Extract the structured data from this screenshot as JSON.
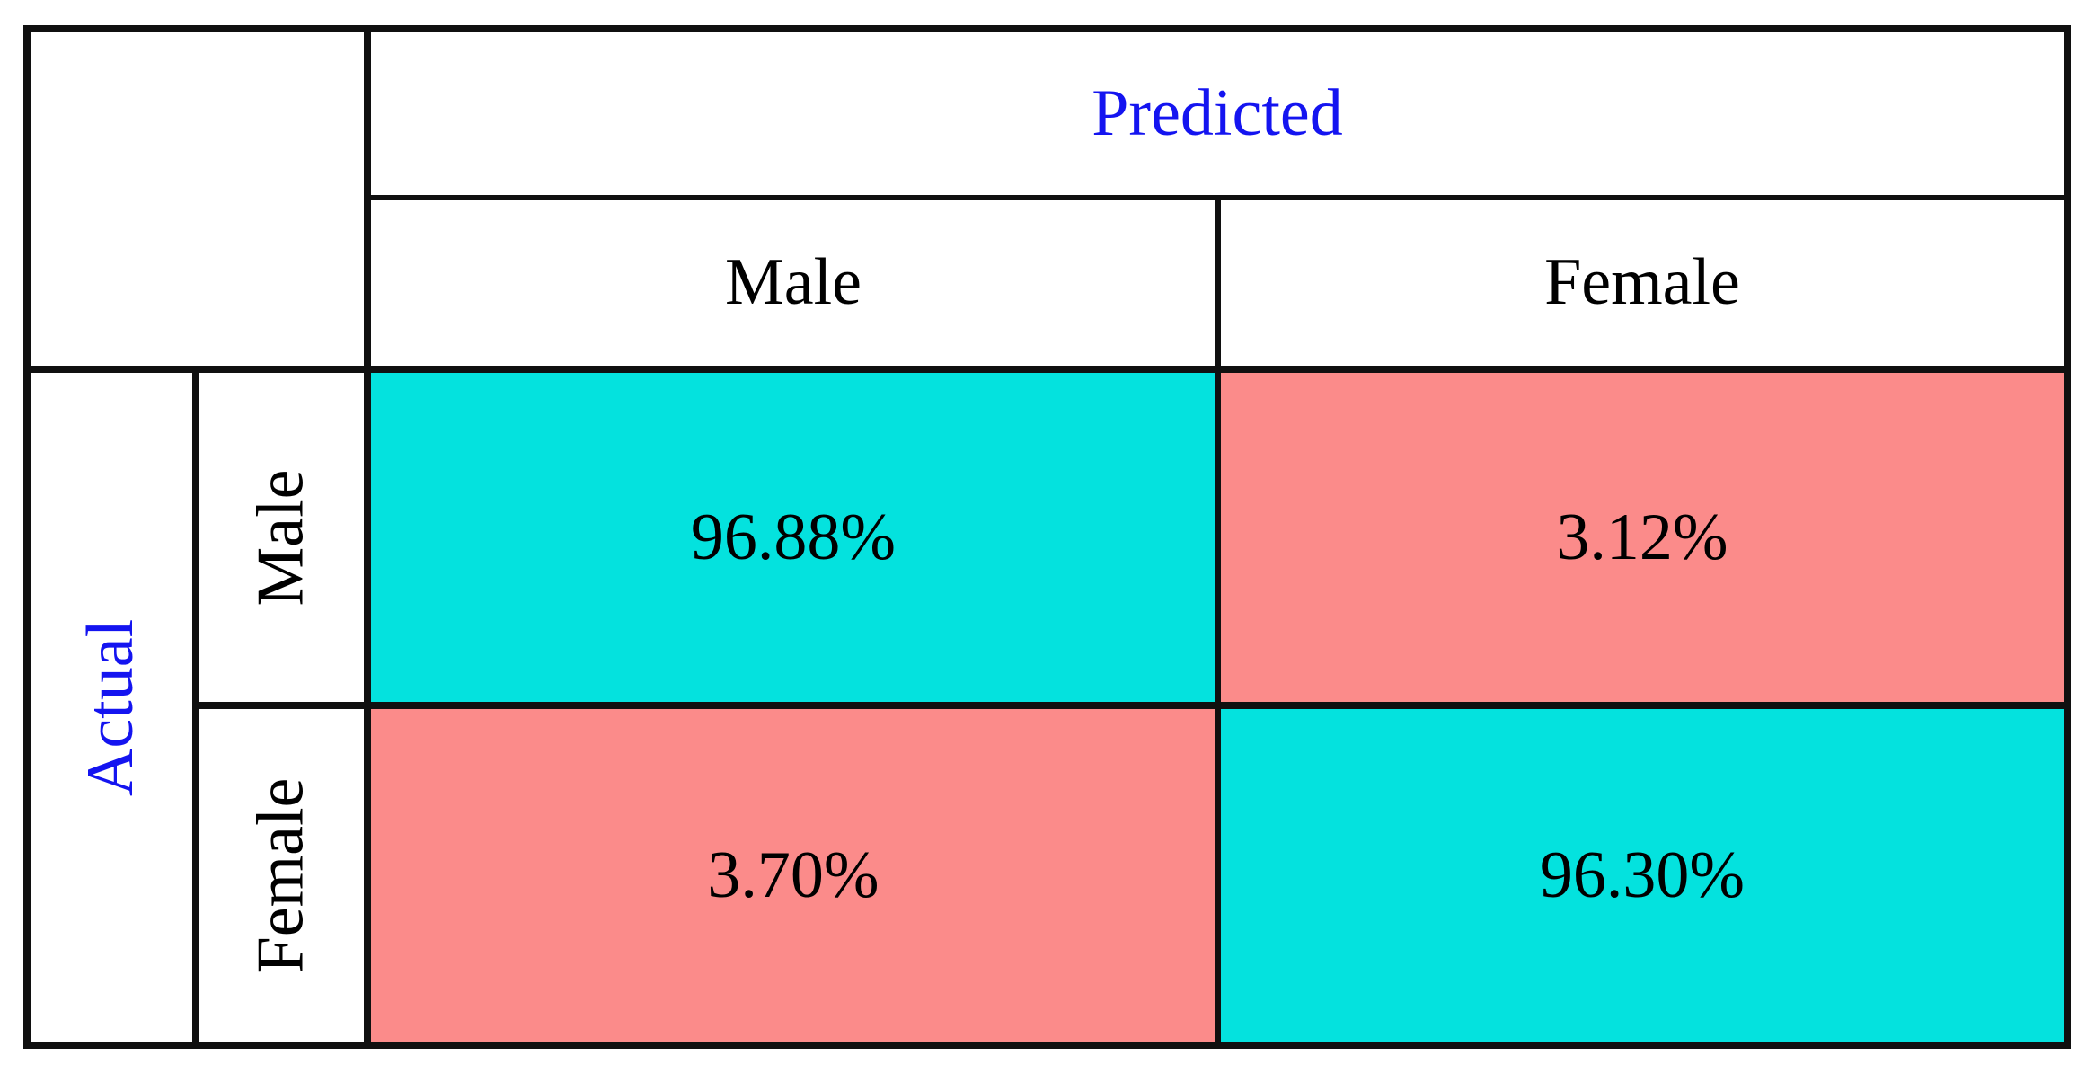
{
  "figure": {
    "kind": "confusion-matrix",
    "predicted_axis_label": "Predicted",
    "actual_axis_label": "Actual",
    "predicted_classes": [
      "Male",
      "Female"
    ],
    "actual_classes": [
      "Male",
      "Female"
    ],
    "cells": {
      "actual_male_predicted_male": "96.88%",
      "actual_male_predicted_female": "3.12%",
      "actual_female_predicted_male": "3.70%",
      "actual_female_predicted_female": "96.30%"
    }
  },
  "colors": {
    "diagonal_cell": "#04e2de",
    "off_diagonal_cell": "#fb8b8a",
    "axis_label_text": "#1414f0",
    "class_label_text": "#000000",
    "grid_line": "#101010",
    "background": "#ffffff"
  },
  "chart_data": {
    "type": "heatmap",
    "x_axis_label": "Predicted",
    "y_axis_label": "Actual",
    "x_categories": [
      "Male",
      "Female"
    ],
    "y_categories": [
      "Male",
      "Female"
    ],
    "values_percent": [
      [
        96.88,
        3.12
      ],
      [
        3.7,
        96.3
      ]
    ],
    "cell_labels": [
      [
        "96.88%",
        "3.12%"
      ],
      [
        "3.70%",
        "96.30%"
      ]
    ],
    "legend_position": "none",
    "grid": "on",
    "cell_color_rule": "diagonal cells cyan, off-diagonal cells salmon"
  }
}
